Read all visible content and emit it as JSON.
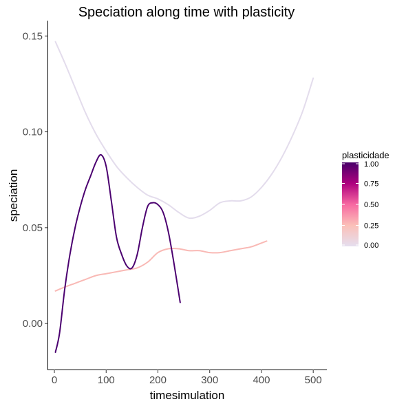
{
  "chart_data": {
    "type": "line",
    "title": "Speciation along time with plasticity",
    "xlabel": "timesimulation",
    "ylabel": "speciation",
    "xlim": [
      -12,
      525
    ],
    "ylim": [
      -0.024,
      0.158
    ],
    "x_ticks": [
      0,
      100,
      200,
      300,
      400,
      500
    ],
    "x_tick_labels": [
      "0",
      "100",
      "200",
      "300",
      "400",
      "500"
    ],
    "y_ticks": [
      0.0,
      0.05,
      0.1,
      0.15
    ],
    "y_tick_labels": [
      "0.00",
      "0.05",
      "0.10",
      "0.15"
    ],
    "grid": false,
    "legend": {
      "title": "plasticidade",
      "placement": "right",
      "range": [
        0,
        1
      ],
      "breaks": [
        1.0,
        0.75,
        0.5,
        0.25,
        0.0
      ],
      "break_labels": [
        "1.00",
        "0.75",
        "0.50",
        "0.25",
        "0.00"
      ],
      "colors": [
        "#dcd3e8",
        "#f8bbb5",
        "#f768a1",
        "#ae017e",
        "#49006a"
      ]
    },
    "series": [
      {
        "name": "plasticidade 0.00",
        "plasticidade": 0.0,
        "color": "#e3dcec",
        "x": [
          2,
          20,
          40,
          60,
          80,
          100,
          120,
          140,
          160,
          180,
          200,
          220,
          240,
          260,
          280,
          300,
          320,
          340,
          360,
          380,
          400,
          420,
          440,
          460,
          480,
          500
        ],
        "y": [
          0.147,
          0.136,
          0.123,
          0.11,
          0.099,
          0.09,
          0.082,
          0.076,
          0.071,
          0.067,
          0.065,
          0.062,
          0.058,
          0.055,
          0.056,
          0.059,
          0.063,
          0.064,
          0.064,
          0.066,
          0.071,
          0.078,
          0.087,
          0.098,
          0.111,
          0.128
        ]
      },
      {
        "name": "plasticidade 0.25",
        "plasticidade": 0.25,
        "color": "#f9b9b5",
        "x": [
          2,
          20,
          40,
          60,
          80,
          100,
          120,
          140,
          160,
          180,
          200,
          220,
          240,
          260,
          280,
          300,
          320,
          340,
          360,
          380,
          400,
          410
        ],
        "y": [
          0.017,
          0.019,
          0.021,
          0.023,
          0.025,
          0.026,
          0.027,
          0.028,
          0.029,
          0.032,
          0.037,
          0.039,
          0.039,
          0.038,
          0.038,
          0.037,
          0.037,
          0.038,
          0.039,
          0.04,
          0.042,
          0.043
        ]
      },
      {
        "name": "plasticidade 1.00",
        "plasticidade": 1.0,
        "color": "#4b0070",
        "x": [
          2,
          10,
          20,
          30,
          40,
          50,
          60,
          70,
          80,
          90,
          100,
          110,
          120,
          130,
          140,
          150,
          160,
          170,
          180,
          190,
          200,
          210,
          220,
          230,
          243
        ],
        "y": [
          -0.015,
          -0.005,
          0.018,
          0.036,
          0.05,
          0.061,
          0.07,
          0.077,
          0.084,
          0.088,
          0.082,
          0.064,
          0.045,
          0.036,
          0.03,
          0.029,
          0.036,
          0.05,
          0.061,
          0.063,
          0.062,
          0.058,
          0.048,
          0.033,
          0.011
        ]
      }
    ]
  }
}
